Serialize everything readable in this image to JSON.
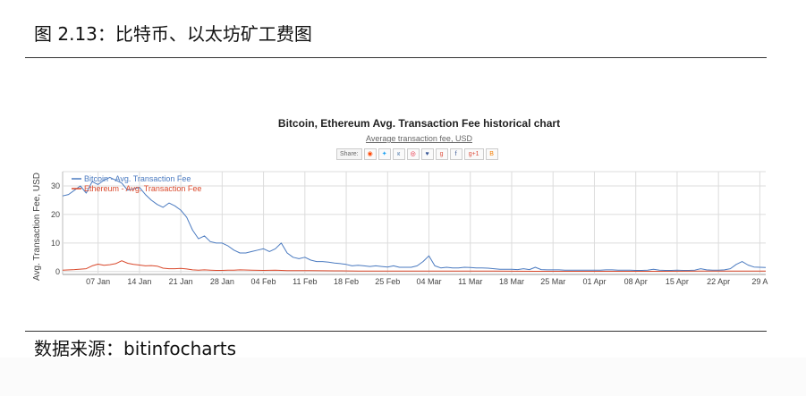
{
  "figure_title": "图 2.13：比特币、以太坊矿工费图",
  "source_note": "数据来源：bitinfocharts",
  "share": {
    "label": "Share:",
    "buttons": [
      {
        "name": "reddit-icon",
        "glyph": "◉",
        "color": "#ff4500"
      },
      {
        "name": "twitter-icon",
        "glyph": "✦",
        "color": "#1da1f2"
      },
      {
        "name": "vk-icon",
        "glyph": "к",
        "color": "#4a76a8"
      },
      {
        "name": "weibo-icon",
        "glyph": "◎",
        "color": "#e6162d"
      },
      {
        "name": "like-icon",
        "glyph": "♥",
        "color": "#3b5998"
      },
      {
        "name": "googleplus-icon",
        "glyph": "g",
        "color": "#dd4b39"
      },
      {
        "name": "facebook-icon",
        "glyph": "f",
        "color": "#3b5998"
      },
      {
        "name": "gplus-one-icon",
        "glyph": "g+1",
        "color": "#dd4b39"
      },
      {
        "name": "blogger-icon",
        "glyph": "B",
        "color": "#f57d00"
      }
    ]
  },
  "chart_data": {
    "type": "line",
    "title": "Bitcoin, Ethereum Avg. Transaction Fee historical chart",
    "subtitle": "Average transaction fee, USD",
    "ylabel": "Avg. Transaction Fee, USD",
    "xlabel": "",
    "ylim": [
      -1,
      35
    ],
    "yticks": [
      0,
      10,
      20,
      30
    ],
    "x_start": "2018-01-01",
    "x_end": "2018-04-30",
    "xticks": [
      {
        "date": "2018-01-07",
        "label": "07 Jan"
      },
      {
        "date": "2018-01-14",
        "label": "14 Jan"
      },
      {
        "date": "2018-01-21",
        "label": "21 Jan"
      },
      {
        "date": "2018-01-28",
        "label": "28 Jan"
      },
      {
        "date": "2018-02-04",
        "label": "04 Feb"
      },
      {
        "date": "2018-02-11",
        "label": "11 Feb"
      },
      {
        "date": "2018-02-18",
        "label": "18 Feb"
      },
      {
        "date": "2018-02-25",
        "label": "25 Feb"
      },
      {
        "date": "2018-03-04",
        "label": "04 Mar"
      },
      {
        "date": "2018-03-11",
        "label": "11 Mar"
      },
      {
        "date": "2018-03-18",
        "label": "18 Mar"
      },
      {
        "date": "2018-03-25",
        "label": "25 Mar"
      },
      {
        "date": "2018-04-01",
        "label": "01 Apr"
      },
      {
        "date": "2018-04-08",
        "label": "08 Apr"
      },
      {
        "date": "2018-04-15",
        "label": "15 Apr"
      },
      {
        "date": "2018-04-22",
        "label": "22 Apr"
      },
      {
        "date": "2018-04-29",
        "label": "29 A"
      }
    ],
    "grid": true,
    "legend": "top-left",
    "series": [
      {
        "name": "Bitcoin - Avg. Transaction Fee",
        "color": "#4a7ac0",
        "points": [
          [
            "2018-01-01",
            26.5
          ],
          [
            "2018-01-02",
            27.0
          ],
          [
            "2018-01-03",
            28.5
          ],
          [
            "2018-01-04",
            30.0
          ],
          [
            "2018-01-05",
            27.5
          ],
          [
            "2018-01-06",
            31.5
          ],
          [
            "2018-01-07",
            30.5
          ],
          [
            "2018-01-08",
            32.0
          ],
          [
            "2018-01-09",
            33.0
          ],
          [
            "2018-01-10",
            32.0
          ],
          [
            "2018-01-11",
            31.0
          ],
          [
            "2018-01-12",
            28.5
          ],
          [
            "2018-01-13",
            29.0
          ],
          [
            "2018-01-14",
            29.5
          ],
          [
            "2018-01-15",
            27.0
          ],
          [
            "2018-01-16",
            25.0
          ],
          [
            "2018-01-17",
            23.5
          ],
          [
            "2018-01-18",
            22.5
          ],
          [
            "2018-01-19",
            24.0
          ],
          [
            "2018-01-20",
            23.0
          ],
          [
            "2018-01-21",
            21.5
          ],
          [
            "2018-01-22",
            19.0
          ],
          [
            "2018-01-23",
            14.5
          ],
          [
            "2018-01-24",
            11.5
          ],
          [
            "2018-01-25",
            12.5
          ],
          [
            "2018-01-26",
            10.5
          ],
          [
            "2018-01-27",
            10.0
          ],
          [
            "2018-01-28",
            10.0
          ],
          [
            "2018-01-29",
            9.0
          ],
          [
            "2018-01-30",
            7.5
          ],
          [
            "2018-01-31",
            6.5
          ],
          [
            "2018-02-01",
            6.5
          ],
          [
            "2018-02-02",
            7.0
          ],
          [
            "2018-02-03",
            7.5
          ],
          [
            "2018-02-04",
            8.0
          ],
          [
            "2018-02-05",
            7.0
          ],
          [
            "2018-02-06",
            8.0
          ],
          [
            "2018-02-07",
            10.0
          ],
          [
            "2018-02-08",
            6.5
          ],
          [
            "2018-02-09",
            5.0
          ],
          [
            "2018-02-10",
            4.5
          ],
          [
            "2018-02-11",
            5.0
          ],
          [
            "2018-02-12",
            4.0
          ],
          [
            "2018-02-13",
            3.5
          ],
          [
            "2018-02-14",
            3.5
          ],
          [
            "2018-02-15",
            3.3
          ],
          [
            "2018-02-16",
            3.0
          ],
          [
            "2018-02-17",
            2.8
          ],
          [
            "2018-02-18",
            2.5
          ],
          [
            "2018-02-19",
            2.0
          ],
          [
            "2018-02-20",
            2.2
          ],
          [
            "2018-02-21",
            2.0
          ],
          [
            "2018-02-22",
            1.8
          ],
          [
            "2018-02-23",
            2.0
          ],
          [
            "2018-02-24",
            1.8
          ],
          [
            "2018-02-25",
            1.6
          ],
          [
            "2018-02-26",
            2.0
          ],
          [
            "2018-02-27",
            1.5
          ],
          [
            "2018-02-28",
            1.5
          ],
          [
            "2018-03-01",
            1.5
          ],
          [
            "2018-03-02",
            2.0
          ],
          [
            "2018-03-03",
            3.5
          ],
          [
            "2018-03-04",
            5.5
          ],
          [
            "2018-03-05",
            2.0
          ],
          [
            "2018-03-06",
            1.3
          ],
          [
            "2018-03-07",
            1.5
          ],
          [
            "2018-03-08",
            1.3
          ],
          [
            "2018-03-09",
            1.3
          ],
          [
            "2018-03-10",
            1.5
          ],
          [
            "2018-03-11",
            1.4
          ],
          [
            "2018-03-12",
            1.3
          ],
          [
            "2018-03-13",
            1.3
          ],
          [
            "2018-03-14",
            1.2
          ],
          [
            "2018-03-15",
            1.0
          ],
          [
            "2018-03-16",
            0.8
          ],
          [
            "2018-03-17",
            0.8
          ],
          [
            "2018-03-18",
            0.8
          ],
          [
            "2018-03-19",
            0.7
          ],
          [
            "2018-03-20",
            1.0
          ],
          [
            "2018-03-21",
            0.7
          ],
          [
            "2018-03-22",
            1.5
          ],
          [
            "2018-03-23",
            0.7
          ],
          [
            "2018-03-24",
            0.6
          ],
          [
            "2018-03-25",
            0.6
          ],
          [
            "2018-03-26",
            0.6
          ],
          [
            "2018-03-27",
            0.5
          ],
          [
            "2018-03-28",
            0.5
          ],
          [
            "2018-03-29",
            0.5
          ],
          [
            "2018-03-30",
            0.5
          ],
          [
            "2018-03-31",
            0.5
          ],
          [
            "2018-04-01",
            0.5
          ],
          [
            "2018-04-02",
            0.5
          ],
          [
            "2018-04-03",
            0.6
          ],
          [
            "2018-04-04",
            0.6
          ],
          [
            "2018-04-05",
            0.5
          ],
          [
            "2018-04-06",
            0.5
          ],
          [
            "2018-04-07",
            0.5
          ],
          [
            "2018-04-08",
            0.4
          ],
          [
            "2018-04-09",
            0.4
          ],
          [
            "2018-04-10",
            0.5
          ],
          [
            "2018-04-11",
            0.8
          ],
          [
            "2018-04-12",
            0.5
          ],
          [
            "2018-04-13",
            0.4
          ],
          [
            "2018-04-14",
            0.4
          ],
          [
            "2018-04-15",
            0.5
          ],
          [
            "2018-04-16",
            0.4
          ],
          [
            "2018-04-17",
            0.4
          ],
          [
            "2018-04-18",
            0.5
          ],
          [
            "2018-04-19",
            1.0
          ],
          [
            "2018-04-20",
            0.6
          ],
          [
            "2018-04-21",
            0.5
          ],
          [
            "2018-04-22",
            0.5
          ],
          [
            "2018-04-23",
            0.6
          ],
          [
            "2018-04-24",
            1.0
          ],
          [
            "2018-04-25",
            2.5
          ],
          [
            "2018-04-26",
            3.5
          ],
          [
            "2018-04-27",
            2.3
          ],
          [
            "2018-04-28",
            1.6
          ],
          [
            "2018-04-29",
            1.5
          ],
          [
            "2018-04-30",
            1.4
          ]
        ]
      },
      {
        "name": "Ethereum - Avg. Transaction Fee",
        "color": "#d9482b",
        "points": [
          [
            "2018-01-01",
            0.5
          ],
          [
            "2018-01-03",
            0.7
          ],
          [
            "2018-01-05",
            1.0
          ],
          [
            "2018-01-06",
            2.0
          ],
          [
            "2018-01-07",
            2.6
          ],
          [
            "2018-01-08",
            2.2
          ],
          [
            "2018-01-09",
            2.4
          ],
          [
            "2018-01-10",
            2.8
          ],
          [
            "2018-01-11",
            3.8
          ],
          [
            "2018-01-12",
            2.9
          ],
          [
            "2018-01-13",
            2.5
          ],
          [
            "2018-01-14",
            2.3
          ],
          [
            "2018-01-15",
            2.0
          ],
          [
            "2018-01-16",
            2.1
          ],
          [
            "2018-01-17",
            1.9
          ],
          [
            "2018-01-18",
            1.2
          ],
          [
            "2018-01-19",
            1.0
          ],
          [
            "2018-01-20",
            1.0
          ],
          [
            "2018-01-21",
            1.1
          ],
          [
            "2018-01-22",
            0.9
          ],
          [
            "2018-01-23",
            0.6
          ],
          [
            "2018-01-24",
            0.5
          ],
          [
            "2018-01-25",
            0.6
          ],
          [
            "2018-01-26",
            0.5
          ],
          [
            "2018-01-27",
            0.4
          ],
          [
            "2018-01-28",
            0.4
          ],
          [
            "2018-01-29",
            0.5
          ],
          [
            "2018-01-30",
            0.5
          ],
          [
            "2018-01-31",
            0.6
          ],
          [
            "2018-02-02",
            0.5
          ],
          [
            "2018-02-04",
            0.4
          ],
          [
            "2018-02-06",
            0.5
          ],
          [
            "2018-02-08",
            0.3
          ],
          [
            "2018-02-12",
            0.3
          ],
          [
            "2018-02-16",
            0.25
          ],
          [
            "2018-02-20",
            0.2
          ],
          [
            "2018-02-25",
            0.2
          ],
          [
            "2018-03-01",
            0.2
          ],
          [
            "2018-03-08",
            0.15
          ],
          [
            "2018-03-15",
            0.15
          ],
          [
            "2018-03-22",
            0.1
          ],
          [
            "2018-03-29",
            0.1
          ],
          [
            "2018-04-05",
            0.1
          ],
          [
            "2018-04-12",
            0.1
          ],
          [
            "2018-04-19",
            0.15
          ],
          [
            "2018-04-26",
            0.2
          ],
          [
            "2018-04-30",
            0.2
          ]
        ]
      }
    ]
  }
}
